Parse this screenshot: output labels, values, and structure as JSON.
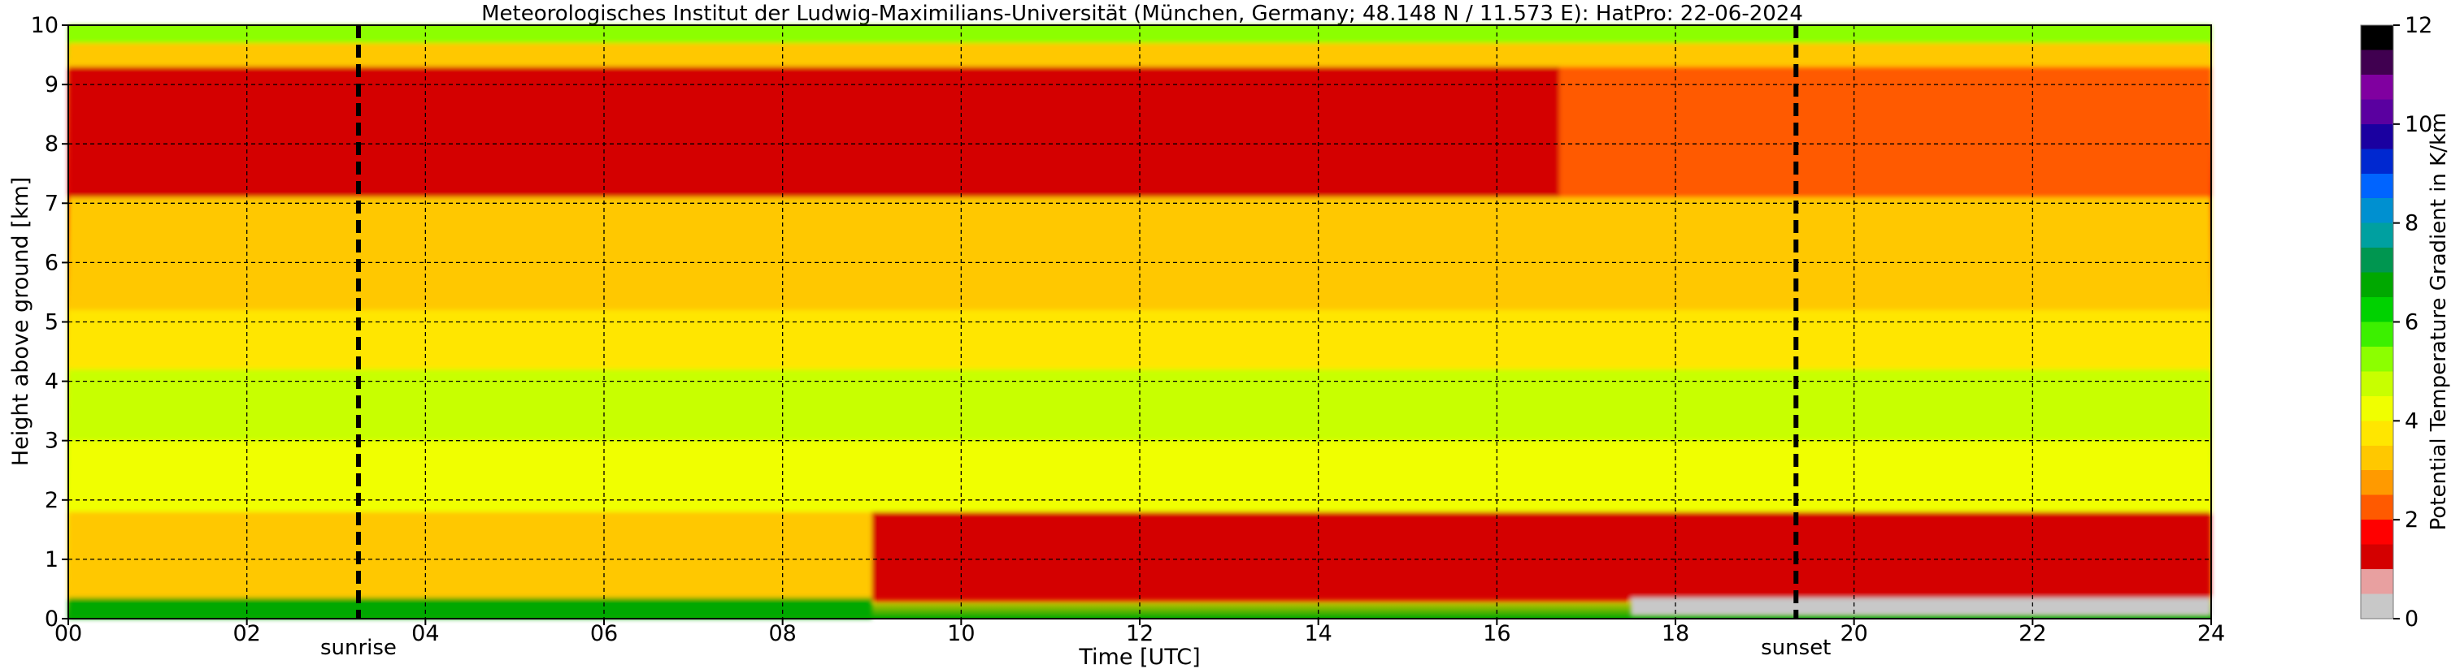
{
  "chart_data": {
    "type": "heatmap",
    "title": "Meteorologisches Institut der Ludwig-Maximilians-Universität (München, Germany; 48.148 N / 11.573 E):    HatPro: 22-06-2024",
    "xlabel": "Time [UTC]",
    "ylabel": "Height above ground [km]",
    "xlim": [
      0,
      24
    ],
    "ylim": [
      0,
      10
    ],
    "x_ticks": [
      "00",
      "02",
      "04",
      "06",
      "08",
      "10",
      "12",
      "14",
      "16",
      "18",
      "20",
      "22",
      "24"
    ],
    "y_ticks": [
      "0",
      "1",
      "2",
      "3",
      "4",
      "5",
      "6",
      "7",
      "8",
      "9",
      "10"
    ],
    "grid": true,
    "colorbar": {
      "label": "Potential Temperature Gradient in K/km",
      "range": [
        0,
        12
      ],
      "ticks": [
        "0",
        "2",
        "4",
        "6",
        "8",
        "10",
        "12"
      ],
      "colors": [
        "#c8c8c8",
        "#e8a0a0",
        "#d40000",
        "#ff0000",
        "#ff5a00",
        "#ff9a00",
        "#ffc800",
        "#ffe600",
        "#f0ff00",
        "#c8ff00",
        "#8cff00",
        "#3cf000",
        "#00d200",
        "#00a800",
        "#009650",
        "#00a0a0",
        "#0090d0",
        "#0064ff",
        "#0028d0",
        "#1a00a0",
        "#5a00a0",
        "#8000a0",
        "#400050",
        "#000000"
      ]
    },
    "markers": [
      {
        "label": "sunrise",
        "x": 3.25
      },
      {
        "label": "sunset",
        "x": 19.35
      }
    ],
    "layers": [
      {
        "hour_range": [
          0,
          16.7
        ],
        "height_range_km": [
          7.1,
          9.3
        ],
        "value_K_per_km": 1.2
      },
      {
        "hour_range": [
          16.7,
          24
        ],
        "height_range_km": [
          7.1,
          9.3
        ],
        "value_K_per_km": 2.2
      },
      {
        "hour_range": [
          0,
          24
        ],
        "height_range_km": [
          9.3,
          9.7
        ],
        "value_K_per_km": 3.0
      },
      {
        "hour_range": [
          0,
          24
        ],
        "height_range_km": [
          9.7,
          10.0
        ],
        "value_K_per_km": 5.0
      },
      {
        "hour_range": [
          0,
          24
        ],
        "height_range_km": [
          5.2,
          7.1
        ],
        "value_K_per_km": 3.0
      },
      {
        "hour_range": [
          0,
          24
        ],
        "height_range_km": [
          4.2,
          5.2
        ],
        "value_K_per_km": 3.8
      },
      {
        "hour_range": [
          0,
          24
        ],
        "height_range_km": [
          3.0,
          4.2
        ],
        "value_K_per_km": 4.6
      },
      {
        "hour_range": [
          0,
          24
        ],
        "height_range_km": [
          1.8,
          3.0
        ],
        "value_K_per_km": 4.3
      },
      {
        "hour_range": [
          0,
          9
        ],
        "height_range_km": [
          0.35,
          1.8
        ],
        "value_K_per_km": 3.2
      },
      {
        "hour_range": [
          9,
          24
        ],
        "height_range_km": [
          0.3,
          1.8
        ],
        "value_K_per_km": 1.3
      },
      {
        "hour_range": [
          0,
          9
        ],
        "height_range_km": [
          0.0,
          0.35
        ],
        "value_K_per_km": 6.5
      },
      {
        "hour_range": [
          17.5,
          24
        ],
        "height_range_km": [
          0.05,
          0.35
        ],
        "value_K_per_km": 0.3
      }
    ]
  }
}
